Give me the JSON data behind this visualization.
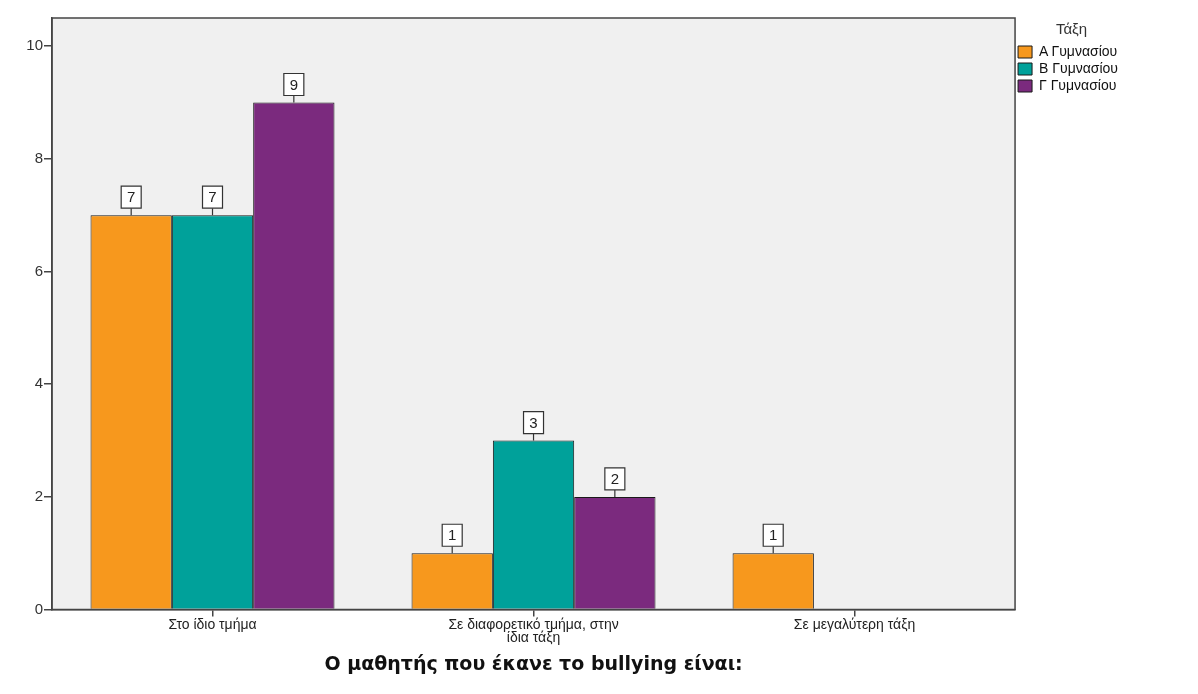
{
  "chart_data": {
    "type": "bar",
    "xlabel": "Ο μαθητής που έκανε το bullying είναι:",
    "legend_title": "Τάξη",
    "categories": [
      "Στο ίδιο τμήμα",
      "Σε διαφορετικό τμήμα, στην ίδια τάξη",
      "Σε μεγαλύτερη τάξη"
    ],
    "series": [
      {
        "name": "Α Γυμνασίου",
        "color": "#f7981d",
        "values": [
          7,
          1,
          1
        ]
      },
      {
        "name": "Β Γυμνασίου",
        "color": "#00a19a",
        "values": [
          7,
          3,
          null
        ]
      },
      {
        "name": "Γ Γυμνασίου",
        "color": "#7b2a7e",
        "values": [
          9,
          2,
          null
        ]
      }
    ],
    "ylim": [
      0,
      10.5
    ],
    "yticks": [
      0,
      2,
      4,
      6,
      8,
      10
    ],
    "grid": false,
    "legend": "top right",
    "data_labels": true
  }
}
